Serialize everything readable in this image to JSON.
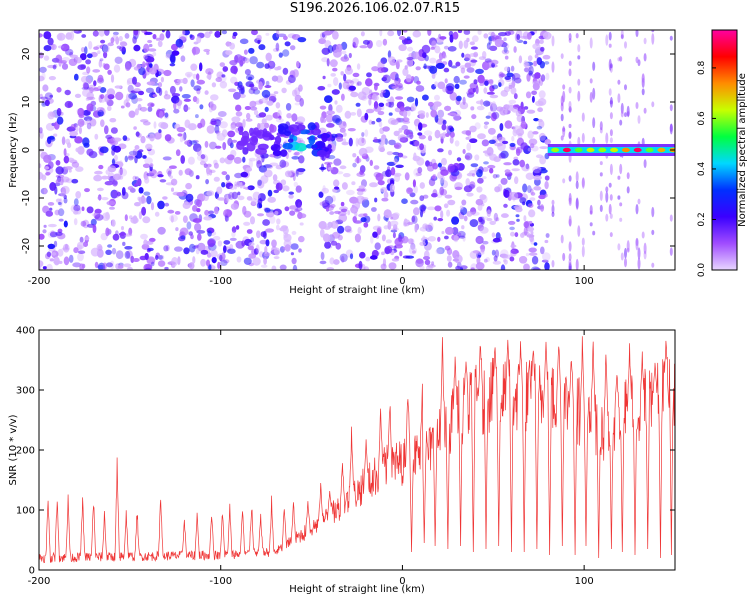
{
  "figure": {
    "title": "S196.2026.106.02.07.R15"
  },
  "chart_data": [
    {
      "type": "heatmap",
      "xlabel": "Height of straight line (km)",
      "ylabel": "Frequency (Hz)",
      "xlim": [
        -200,
        150
      ],
      "ylim": [
        -25,
        25
      ],
      "x_ticks": [
        -200,
        -100,
        0,
        100
      ],
      "y_ticks": [
        -20,
        -10,
        0,
        10,
        20
      ],
      "colorbar": {
        "label": "Normalized spectral amplitude",
        "range": [
          0,
          0.95
        ],
        "ticks": [
          "0.0",
          "0.2",
          "0.4",
          "0.6",
          "0.8"
        ],
        "colormap": [
          "#e8d6ff",
          "#a04cff",
          "#3a00ff",
          "#0030ff",
          "#00d8ff",
          "#00ff40",
          "#c8ff00",
          "#ff8c00",
          "#ff0000",
          "#ff00a0"
        ]
      },
      "features": {
        "noise_region_km": [
          -200,
          80
        ],
        "blank_strip_km": [
          -55,
          -45
        ],
        "burst": {
          "x_km": [
            -90,
            -40
          ],
          "freq_hz": [
            -1,
            5
          ],
          "peak": 0.35
        },
        "tone": {
          "x_km": [
            80,
            150
          ],
          "freq_hz": 0,
          "peak": 0.95
        }
      }
    },
    {
      "type": "line",
      "xlabel": "Height of straight line (km)",
      "ylabel": "SNR (10 * v/v)",
      "xlim": [
        -200,
        150
      ],
      "ylim": [
        0,
        400
      ],
      "x_ticks": [
        -200,
        -100,
        0,
        100
      ],
      "y_ticks": [
        0,
        100,
        200,
        300,
        400
      ],
      "series": [
        {
          "color": "#ef3535",
          "baseline": [
            [
              -200,
              20
            ],
            [
              -100,
              25
            ],
            [
              -70,
              30
            ],
            [
              -55,
              60
            ],
            [
              -40,
              90
            ],
            [
              -25,
              130
            ],
            [
              -10,
              170
            ],
            [
              0,
              180
            ],
            [
              15,
              200
            ],
            [
              30,
              260
            ],
            [
              45,
              290
            ],
            [
              70,
              290
            ],
            [
              90,
              280
            ],
            [
              100,
              260
            ],
            [
              110,
              230
            ],
            [
              120,
              260
            ],
            [
              135,
              280
            ],
            [
              150,
              300
            ]
          ],
          "spikes": [
            {
              "x": -195,
              "y": 140
            },
            {
              "x": -190,
              "y": 145
            },
            {
              "x": -184,
              "y": 135
            },
            {
              "x": -176,
              "y": 125
            },
            {
              "x": -170,
              "y": 130
            },
            {
              "x": -164,
              "y": 105
            },
            {
              "x": -157,
              "y": 195
            },
            {
              "x": -152,
              "y": 110
            },
            {
              "x": -146,
              "y": 110
            },
            {
              "x": -133,
              "y": 145
            },
            {
              "x": -120,
              "y": 90
            },
            {
              "x": -113,
              "y": 105
            },
            {
              "x": -105,
              "y": 115
            },
            {
              "x": -99,
              "y": 115
            },
            {
              "x": -95,
              "y": 115
            },
            {
              "x": -88,
              "y": 110
            },
            {
              "x": -83,
              "y": 125
            },
            {
              "x": -78,
              "y": 100
            },
            {
              "x": -72,
              "y": 125
            },
            {
              "x": -65,
              "y": 115
            },
            {
              "x": -60,
              "y": 120
            },
            {
              "x": -52,
              "y": 120
            },
            {
              "x": -45,
              "y": 150
            },
            {
              "x": -40,
              "y": 140
            },
            {
              "x": -33,
              "y": 190
            },
            {
              "x": -28,
              "y": 250
            },
            {
              "x": -20,
              "y": 220
            },
            {
              "x": -12,
              "y": 285
            },
            {
              "x": -7,
              "y": 300
            },
            {
              "x": 3,
              "y": 320
            },
            {
              "x": 11,
              "y": 330
            },
            {
              "x": 22,
              "y": 395
            },
            {
              "x": 29,
              "y": 370
            },
            {
              "x": 35,
              "y": 380
            },
            {
              "x": 43,
              "y": 400
            },
            {
              "x": 51,
              "y": 390
            },
            {
              "x": 58,
              "y": 390
            },
            {
              "x": 65,
              "y": 395
            },
            {
              "x": 72,
              "y": 390
            },
            {
              "x": 79,
              "y": 390
            },
            {
              "x": 86,
              "y": 395
            },
            {
              "x": 93,
              "y": 370
            },
            {
              "x": 99,
              "y": 395
            },
            {
              "x": 105,
              "y": 400
            },
            {
              "x": 112,
              "y": 370
            },
            {
              "x": 118,
              "y": 350
            },
            {
              "x": 125,
              "y": 390
            },
            {
              "x": 132,
              "y": 365
            },
            {
              "x": 139,
              "y": 355
            },
            {
              "x": 145,
              "y": 395
            }
          ],
          "dips": [
            {
              "x": 5,
              "y": 30
            },
            {
              "x": 12,
              "y": 45
            },
            {
              "x": 18,
              "y": 40
            },
            {
              "x": 25,
              "y": 35
            },
            {
              "x": 32,
              "y": 40
            },
            {
              "x": 39,
              "y": 30
            },
            {
              "x": 46,
              "y": 35
            },
            {
              "x": 53,
              "y": 40
            },
            {
              "x": 60,
              "y": 30
            },
            {
              "x": 67,
              "y": 30
            },
            {
              "x": 74,
              "y": 35
            },
            {
              "x": 81,
              "y": 25
            },
            {
              "x": 88,
              "y": 40
            },
            {
              "x": 95,
              "y": 25
            },
            {
              "x": 101,
              "y": 40
            },
            {
              "x": 108,
              "y": 20
            },
            {
              "x": 115,
              "y": 35
            },
            {
              "x": 121,
              "y": 30
            },
            {
              "x": 128,
              "y": 25
            },
            {
              "x": 135,
              "y": 35
            },
            {
              "x": 142,
              "y": 20
            },
            {
              "x": 148,
              "y": 25
            }
          ]
        }
      ]
    }
  ]
}
